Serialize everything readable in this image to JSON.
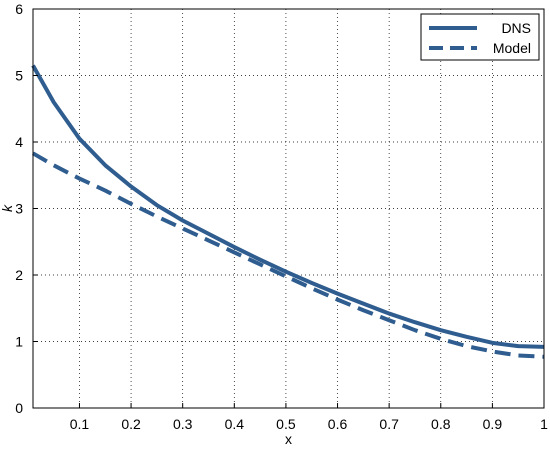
{
  "chart_data": {
    "type": "line",
    "xlabel": "x",
    "ylabel": "k",
    "xlim": [
      0.01,
      1.0
    ],
    "ylim": [
      0,
      6
    ],
    "xticks": [
      "0.1",
      "0.2",
      "0.3",
      "0.4",
      "0.5",
      "0.6",
      "0.7",
      "0.8",
      "0.9",
      "1"
    ],
    "yticks": [
      "0",
      "1",
      "2",
      "3",
      "4",
      "5",
      "6"
    ],
    "grid": true,
    "legend_position": "top-right",
    "series": [
      {
        "name": "DNS",
        "style": "solid",
        "color": "#2f5d8f",
        "x": [
          0.01,
          0.05,
          0.1,
          0.15,
          0.2,
          0.25,
          0.3,
          0.35,
          0.4,
          0.45,
          0.5,
          0.55,
          0.6,
          0.65,
          0.7,
          0.75,
          0.8,
          0.85,
          0.9,
          0.95,
          1.0
        ],
        "y": [
          5.15,
          4.6,
          4.05,
          3.65,
          3.33,
          3.05,
          2.82,
          2.62,
          2.42,
          2.23,
          2.05,
          1.88,
          1.72,
          1.57,
          1.42,
          1.29,
          1.17,
          1.07,
          0.98,
          0.93,
          0.92
        ]
      },
      {
        "name": "Model",
        "style": "dashed",
        "color": "#2f5d8f",
        "x": [
          0.01,
          0.05,
          0.1,
          0.15,
          0.2,
          0.25,
          0.3,
          0.35,
          0.4,
          0.45,
          0.5,
          0.55,
          0.6,
          0.65,
          0.7,
          0.75,
          0.8,
          0.85,
          0.9,
          0.95,
          1.0
        ],
        "y": [
          3.83,
          3.65,
          3.45,
          3.27,
          3.07,
          2.88,
          2.7,
          2.52,
          2.34,
          2.16,
          1.98,
          1.8,
          1.63,
          1.47,
          1.32,
          1.17,
          1.04,
          0.93,
          0.85,
          0.79,
          0.77
        ]
      }
    ]
  }
}
